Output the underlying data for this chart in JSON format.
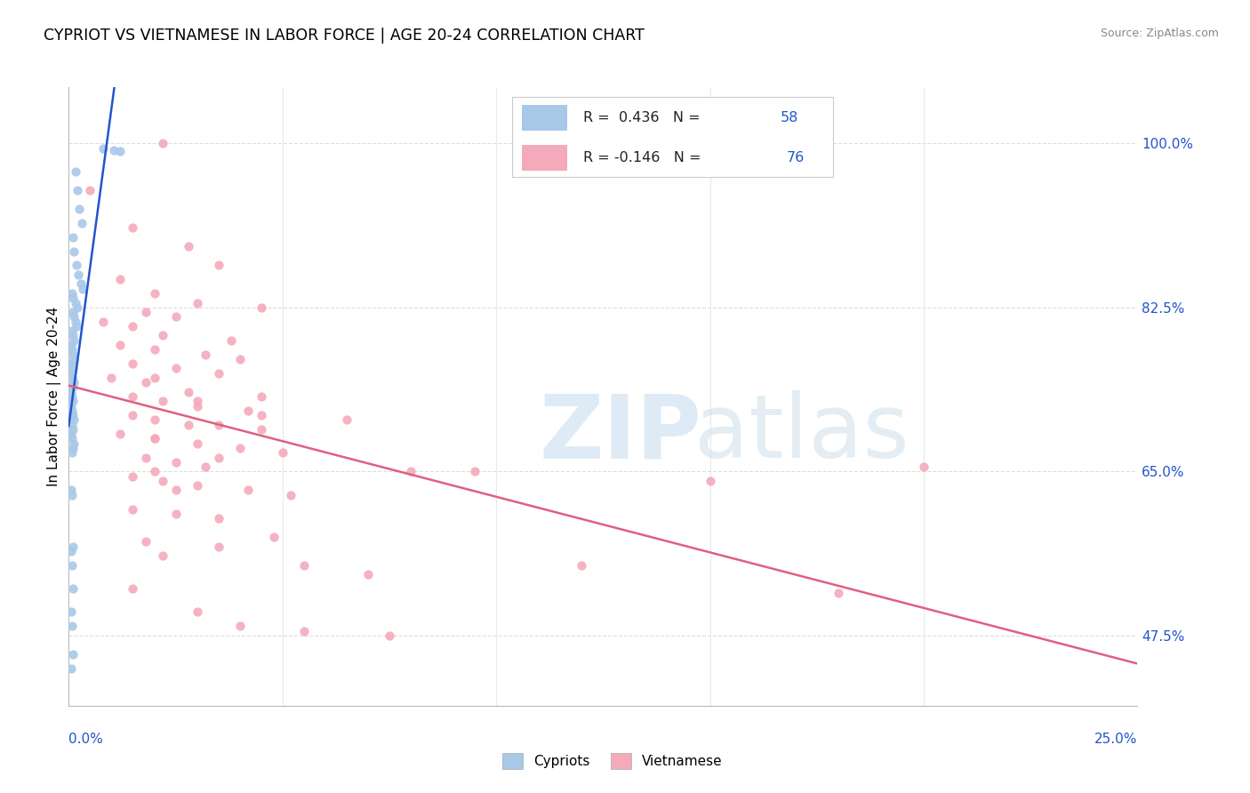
{
  "title": "CYPRIOT VS VIETNAMESE IN LABOR FORCE | AGE 20-24 CORRELATION CHART",
  "source": "Source: ZipAtlas.com",
  "xmin": 0.0,
  "xmax": 25.0,
  "ymin": 40.0,
  "ymax": 106.0,
  "ytick_vals": [
    47.5,
    65.0,
    82.5,
    100.0
  ],
  "ylabel_label": "In Labor Force | Age 20-24",
  "blue_color": "#A8C8E8",
  "pink_color": "#F4AABB",
  "blue_line_color": "#2255CC",
  "pink_line_color": "#E06080",
  "blue_r": 0.436,
  "pink_r": -0.146,
  "blue_n": 58,
  "pink_n": 76,
  "cypriots_x": [
    0.8,
    1.05,
    1.2,
    0.15,
    0.2,
    0.25,
    0.3,
    0.1,
    0.12,
    0.18,
    0.22,
    0.28,
    0.32,
    0.08,
    0.1,
    0.15,
    0.2,
    0.1,
    0.12,
    0.15,
    0.18,
    0.08,
    0.1,
    0.12,
    0.06,
    0.08,
    0.1,
    0.12,
    0.08,
    0.1,
    0.06,
    0.08,
    0.12,
    0.1,
    0.06,
    0.08,
    0.1,
    0.06,
    0.08,
    0.1,
    0.12,
    0.08,
    0.1,
    0.06,
    0.08,
    0.12,
    0.1,
    0.08,
    0.06,
    0.08,
    0.1,
    0.06,
    0.08,
    0.1,
    0.06,
    0.08,
    0.1,
    0.06
  ],
  "cypriots_y": [
    99.5,
    99.3,
    99.2,
    97.0,
    95.0,
    93.0,
    91.5,
    90.0,
    88.5,
    87.0,
    86.0,
    85.0,
    84.5,
    84.0,
    83.5,
    83.0,
    82.5,
    82.0,
    81.5,
    81.0,
    80.5,
    80.0,
    79.5,
    79.0,
    78.5,
    78.0,
    77.5,
    77.0,
    76.5,
    76.0,
    75.5,
    75.0,
    74.5,
    74.0,
    73.5,
    73.0,
    72.5,
    72.0,
    71.5,
    71.0,
    70.5,
    70.0,
    69.5,
    69.0,
    68.5,
    68.0,
    67.5,
    67.0,
    63.0,
    62.5,
    57.0,
    56.5,
    55.0,
    52.5,
    50.0,
    48.5,
    45.5,
    44.0
  ],
  "vietnamese_x": [
    2.2,
    0.5,
    1.5,
    2.8,
    3.5,
    1.2,
    2.0,
    3.0,
    4.5,
    1.8,
    2.5,
    0.8,
    1.5,
    2.2,
    3.8,
    1.2,
    2.0,
    3.2,
    4.0,
    1.5,
    2.5,
    3.5,
    1.0,
    1.8,
    2.8,
    1.5,
    2.2,
    3.0,
    4.2,
    1.5,
    2.0,
    2.8,
    3.5,
    4.5,
    1.2,
    2.0,
    3.0,
    4.0,
    5.0,
    1.8,
    2.5,
    3.2,
    2.0,
    1.5,
    2.2,
    3.0,
    4.2,
    5.2,
    1.5,
    2.5,
    3.5,
    4.8,
    2.0,
    3.0,
    4.5,
    6.5,
    9.5,
    2.5,
    3.5,
    5.5,
    7.0,
    1.5,
    2.0,
    3.5,
    4.5,
    8.0,
    15.0,
    20.0,
    1.8,
    2.2,
    3.0,
    4.0,
    5.5,
    7.5,
    12.0,
    18.0
  ],
  "vietnamese_y": [
    100.0,
    95.0,
    91.0,
    89.0,
    87.0,
    85.5,
    84.0,
    83.0,
    82.5,
    82.0,
    81.5,
    81.0,
    80.5,
    79.5,
    79.0,
    78.5,
    78.0,
    77.5,
    77.0,
    76.5,
    76.0,
    75.5,
    75.0,
    74.5,
    73.5,
    73.0,
    72.5,
    72.0,
    71.5,
    71.0,
    70.5,
    70.0,
    70.0,
    69.5,
    69.0,
    68.5,
    68.0,
    67.5,
    67.0,
    66.5,
    66.0,
    65.5,
    65.0,
    64.5,
    64.0,
    63.5,
    63.0,
    62.5,
    61.0,
    60.5,
    60.0,
    58.0,
    75.0,
    72.5,
    71.0,
    70.5,
    65.0,
    63.0,
    57.0,
    55.0,
    54.0,
    52.5,
    68.5,
    66.5,
    73.0,
    65.0,
    64.0,
    65.5,
    57.5,
    56.0,
    50.0,
    48.5,
    48.0,
    47.5,
    55.0,
    52.0
  ]
}
